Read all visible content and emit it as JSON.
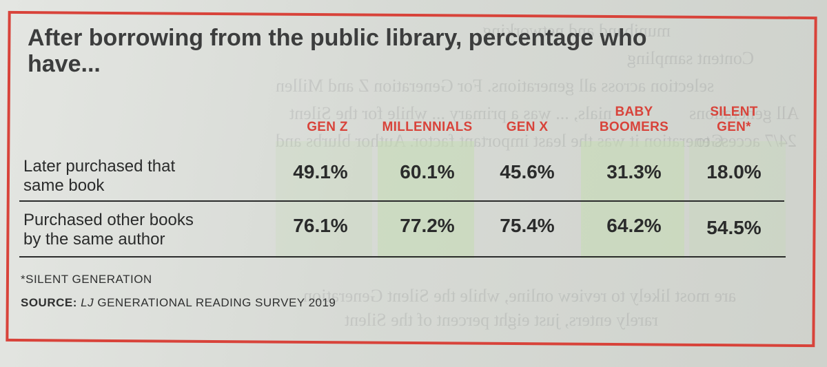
{
  "chart_data": {
    "type": "table",
    "title": "After borrowing from the public library, percentage who have...",
    "columns": [
      {
        "line1": "",
        "line2": "GEN Z"
      },
      {
        "line1": "",
        "line2": "MILLENNIALS"
      },
      {
        "line1": "",
        "line2": "GEN X"
      },
      {
        "line1": "BABY",
        "line2": "BOOMERS"
      },
      {
        "line1": "SILENT",
        "line2": "GEN*"
      }
    ],
    "categories": [
      "GEN Z",
      "MILLENNIALS",
      "GEN X",
      "BABY BOOMERS",
      "SILENT GEN*"
    ],
    "rows": [
      {
        "label_line1": "Later purchased that",
        "label_line2": "same book",
        "values": [
          "49.1%",
          "60.1%",
          "45.6%",
          "31.3%",
          "18.0%"
        ]
      },
      {
        "label_line1": "Purchased other books",
        "label_line2": "by the same author",
        "values": [
          "76.1%",
          "77.2%",
          "75.4%",
          "64.2%",
          "54.5%"
        ]
      }
    ],
    "series": [
      {
        "name": "Later purchased that same book",
        "values": [
          49.1,
          60.1,
          45.6,
          31.3,
          18.0
        ]
      },
      {
        "name": "Purchased other books by the same author",
        "values": [
          76.1,
          77.2,
          75.4,
          64.2,
          54.5
        ]
      }
    ],
    "footnote": "*SILENT GENERATION",
    "source_label": "SOURCE:",
    "source_italic": "LJ",
    "source_text": "GENERATIONAL READING SURVEY 2019"
  },
  "colors": {
    "accent_red": "#d8433a",
    "shade_green": "#c4dcb2",
    "text_dark": "#2a2b2b"
  },
  "background_text": [
    "muniband and networking",
    "Content sampling",
    "selection across all generations. For Generation Z and Millen",
    "nials, ... was a primary ... while for the Silent",
    "Generation it was the least important factor. Author blurbs and",
    "are most likely to review online, while the Silent Generation",
    "rarely enters, just eight percent of the Silent",
    "All generations",
    "24/7 access to"
  ]
}
